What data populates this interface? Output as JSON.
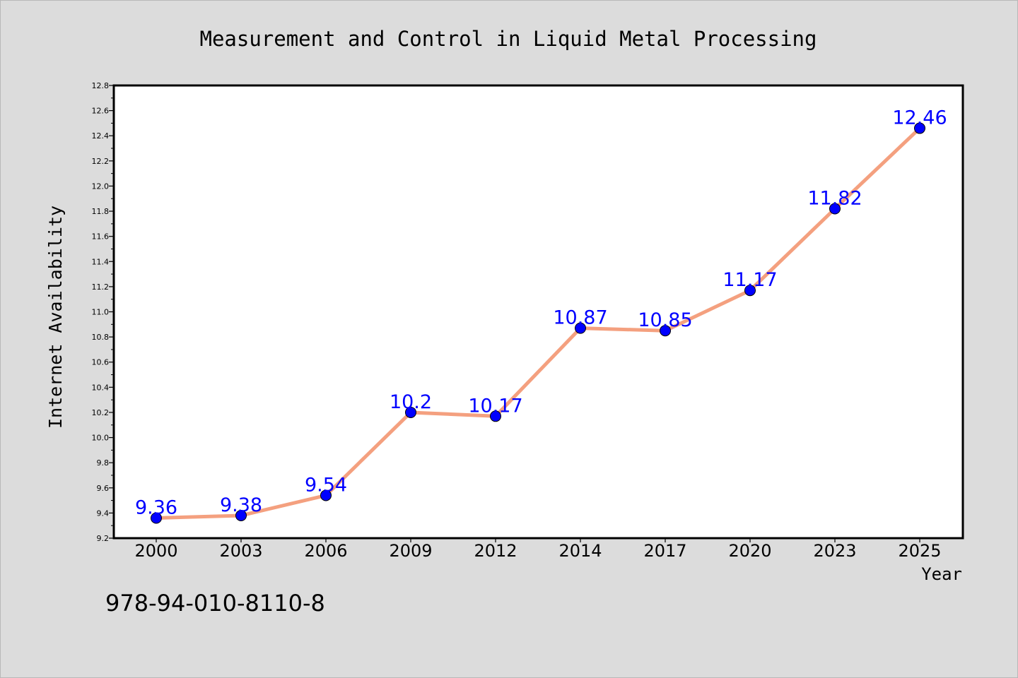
{
  "chart_data": {
    "type": "line",
    "title": "Measurement and Control in Liquid Metal Processing",
    "xlabel": "Year",
    "ylabel": "Internet Availability",
    "categories": [
      "2000",
      "2003",
      "2006",
      "2009",
      "2012",
      "2014",
      "2017",
      "2020",
      "2023",
      "2025"
    ],
    "series": [
      {
        "values": [
          9.36,
          9.38,
          9.54,
          10.2,
          10.17,
          10.87,
          10.85,
          11.17,
          11.82,
          12.46
        ],
        "data_labels": [
          "9.36",
          "9.38",
          "9.54",
          "10.2",
          "10.17",
          "10.87",
          "10.85",
          "11.17",
          "11.82",
          "12.46"
        ],
        "line_color": "#f4a07f",
        "marker_color": "#0000ff",
        "label_color": "#0000ff"
      }
    ],
    "ylim": [
      9.2,
      12.8
    ],
    "yticks": [
      "9.2",
      "9.4",
      "9.6",
      "9.8",
      "10.0",
      "10.2",
      "10.4",
      "10.6",
      "10.8",
      "11.0",
      "11.2",
      "11.4",
      "11.6",
      "11.8",
      "12.0",
      "12.2",
      "12.4",
      "12.6",
      "12.8"
    ],
    "grid": false,
    "legend": "none",
    "background_color": "#dcdcdc",
    "plot_background": "#ffffff"
  },
  "footer": {
    "isbn": "978-94-010-8110-8"
  }
}
